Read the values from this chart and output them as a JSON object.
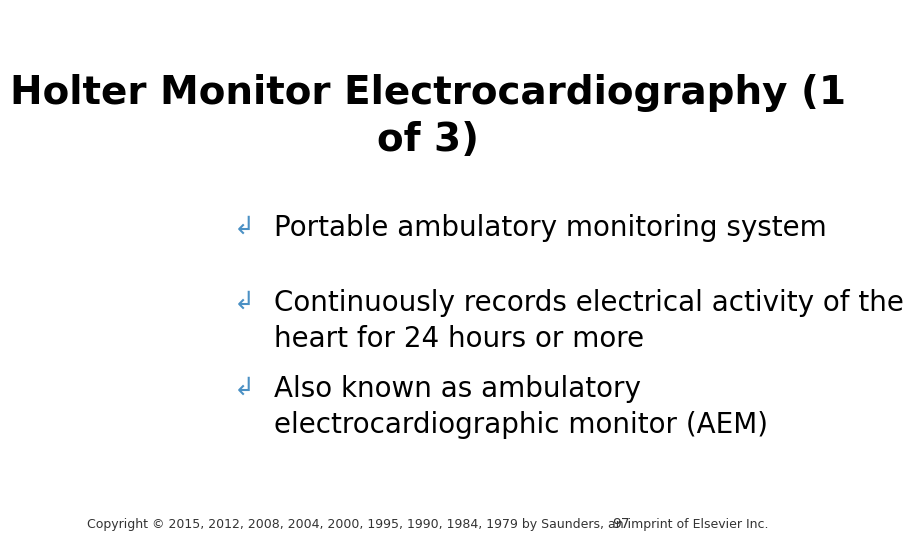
{
  "title_line1": "Holter Monitor Electrocardiography (1",
  "title_line2": "of 3)",
  "title_fontsize": 28,
  "title_color": "#000000",
  "background_color": "#ffffff",
  "bullet_color": "#4a90c4",
  "bullet_text_color": "#000000",
  "bullet_fontsize": 20,
  "bullets": [
    "Portable ambulatory monitoring system",
    "Continuously records electrical activity of the\nheart for 24 hours or more",
    "Also known as ambulatory\nelectrocardiographic monitor (AEM)"
  ],
  "footer_text": "Copyright © 2015, 2012, 2008, 2004, 2000, 1995, 1990, 1984, 1979 by Saunders, an imprint of Elsevier Inc.",
  "footer_fontsize": 9,
  "page_number": "97",
  "page_number_fontsize": 10
}
